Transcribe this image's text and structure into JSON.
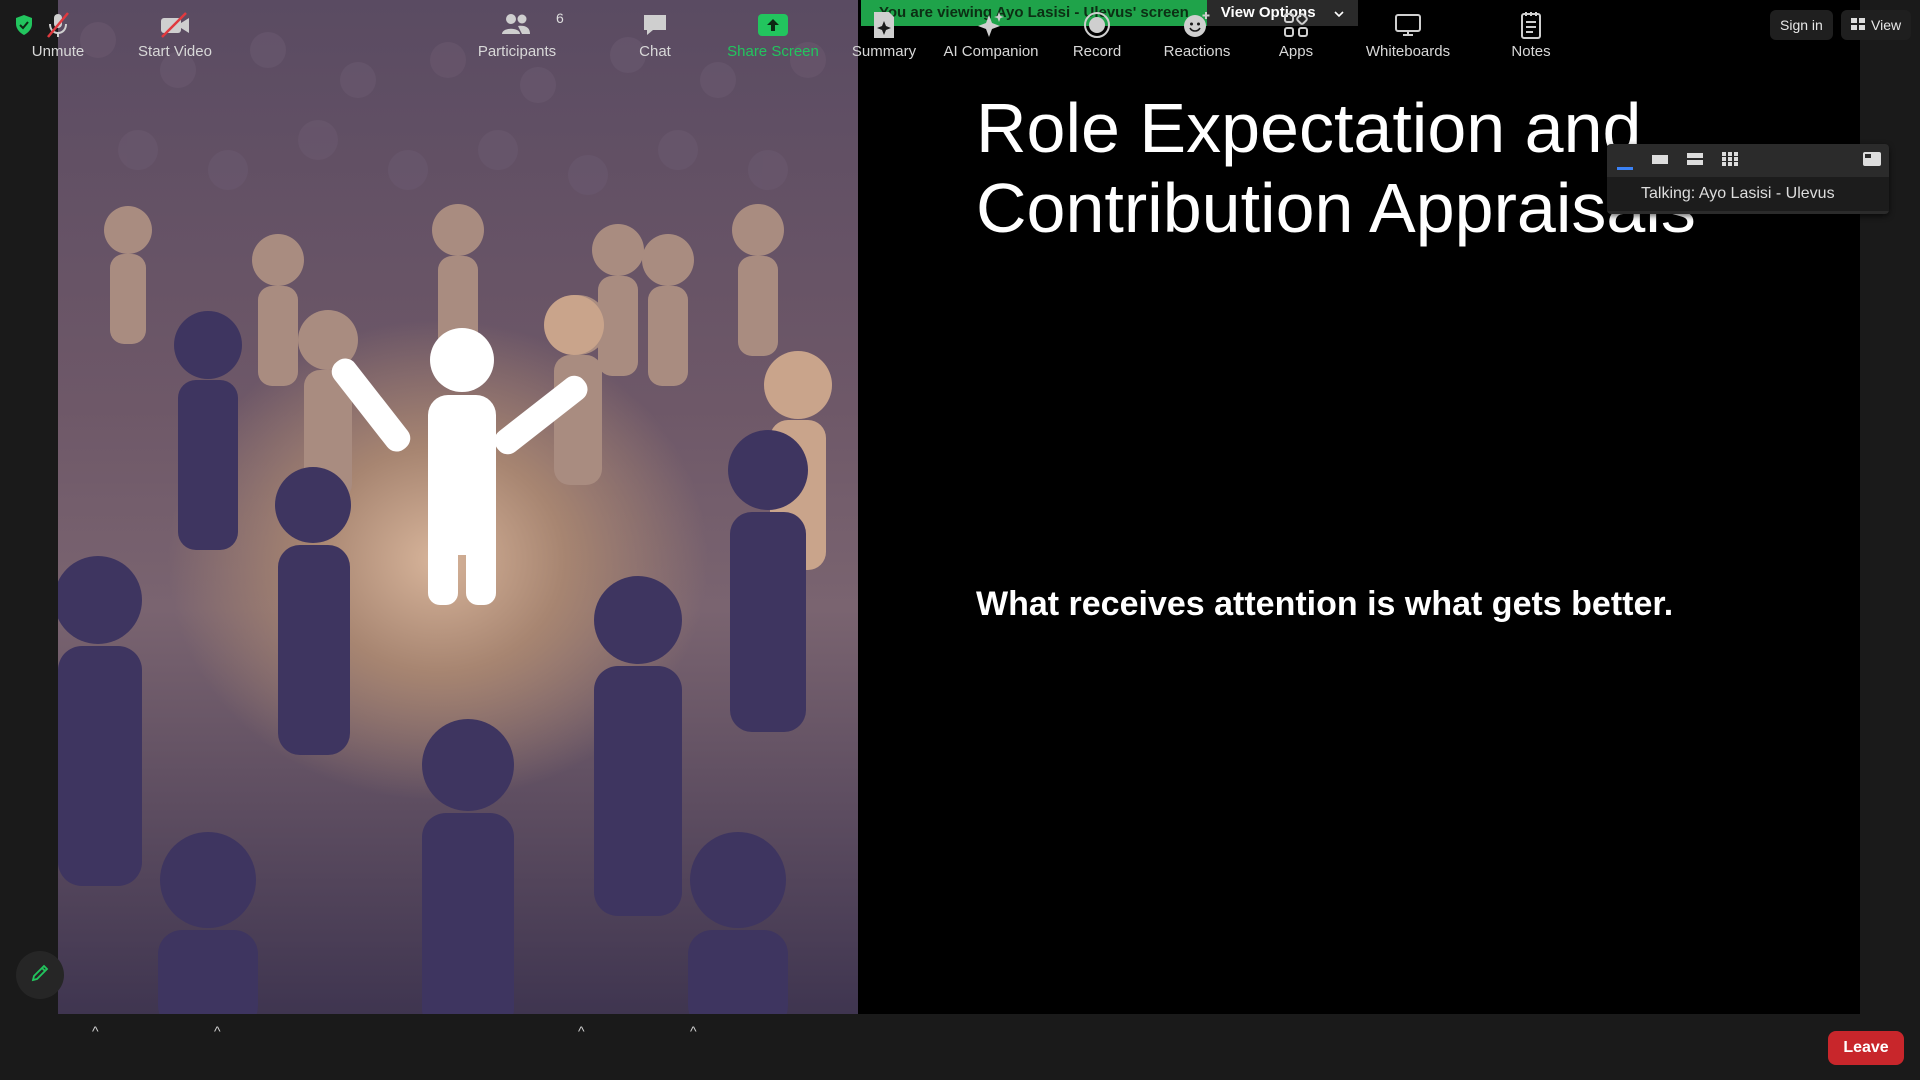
{
  "banner": {
    "viewing_text": "You are viewing Ayo Lasisi - Ulevus' screen",
    "view_options_label": "View Options"
  },
  "top_right": {
    "sign_in_label": "Sign in",
    "view_label": "View"
  },
  "slide": {
    "title_line1": "Role Expectation and",
    "title_line2": "Contribution Appraisals",
    "subtitle": "What receives attention is what gets better."
  },
  "talking_panel": {
    "label": "Talking: Ayo Lasisi - Ulevus"
  },
  "toolbar": {
    "unmute_label": "Unmute",
    "start_video_label": "Start Video",
    "participants_label": "Participants",
    "participants_count": "6",
    "chat_label": "Chat",
    "share_screen_label": "Share Screen",
    "summary_label": "Summary",
    "ai_companion_label": "AI Companion",
    "record_label": "Record",
    "reactions_label": "Reactions",
    "apps_label": "Apps",
    "whiteboards_label": "Whiteboards",
    "notes_label": "Notes",
    "leave_label": "Leave"
  },
  "colors": {
    "share_green": "#1fa34a",
    "leave_red": "#c8262b",
    "muted_red": "#e0393e"
  }
}
